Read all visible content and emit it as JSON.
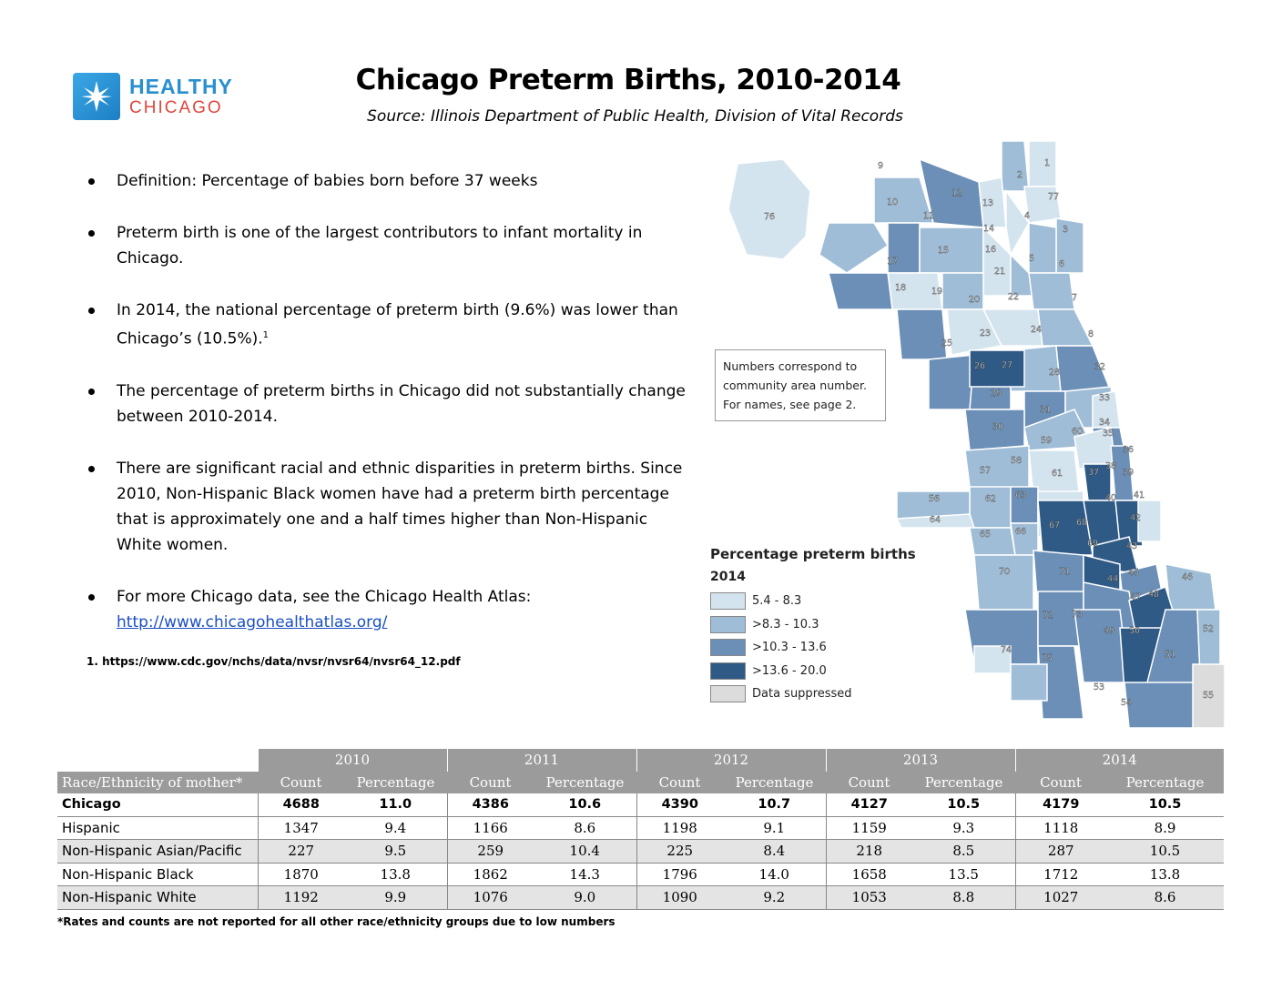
{
  "logo": {
    "line1": "HEALTHY",
    "line2": "CHICAGO"
  },
  "title": "Chicago Preterm Births, 2010-2014",
  "source": "Source:   Illinois Department of Public Health, Division of Vital Records",
  "bullets": [
    {
      "text": "Definition: Percentage of babies born before 37 weeks"
    },
    {
      "text": "Preterm birth is one of the largest contributors to infant mortality in Chicago."
    },
    {
      "text": "In 2014, the national percentage of preterm birth (9.6%) was lower than Chicago’s (10.5%).",
      "sup": "1"
    },
    {
      "text": "The percentage of preterm births in Chicago did not substantially change between 2010-2014."
    },
    {
      "text": "There are significant racial and ethnic disparities in preterm births. Since 2010, Non-Hispanic Black women have had a preterm birth percentage that is approximately one and a half times higher than Non-Hispanic White women."
    },
    {
      "text": "For more Chicago data, see the Chicago Health Atlas:",
      "link": "http://www.chicagohealthatlas.org/"
    }
  ],
  "footnote": "1. https://www.cdc.gov/nchs/data/nvsr/nvsr64/nvsr64_12.pdf",
  "callout": [
    "Numbers correspond to",
    "community area number.",
    "For names, see page 2."
  ],
  "legend": {
    "title": "Percentage preterm births",
    "year": "2014",
    "items": [
      {
        "label": "5.4 - 8.3",
        "color": "#d4e4ef"
      },
      {
        "label": ">8.3 - 10.3",
        "color": "#9fbdd6"
      },
      {
        "label": ">10.3 - 13.6",
        "color": "#6b8fb6"
      },
      {
        "label": ">13.6 - 20.0",
        "color": "#2f5a86"
      },
      {
        "label": "Data suppressed",
        "color": "#dcdcdc"
      }
    ]
  },
  "map_labels": [
    "1",
    "2",
    "3",
    "4",
    "5",
    "6",
    "7",
    "8",
    "9",
    "10",
    "11",
    "12",
    "13",
    "14",
    "15",
    "16",
    "17",
    "18",
    "19",
    "20",
    "21",
    "22",
    "23",
    "24",
    "25",
    "26",
    "27",
    "28",
    "29",
    "30",
    "31",
    "32",
    "33",
    "34",
    "35",
    "36",
    "37",
    "38",
    "39",
    "40",
    "41",
    "42",
    "43",
    "44",
    "45",
    "46",
    "47",
    "48",
    "49",
    "50",
    "51",
    "52",
    "53",
    "54",
    "55",
    "56",
    "57",
    "58",
    "59",
    "60",
    "61",
    "62",
    "63",
    "64",
    "65",
    "66",
    "67",
    "68",
    "69",
    "70",
    "71",
    "72",
    "73",
    "74",
    "75",
    "76",
    "77"
  ],
  "table": {
    "years": [
      "2010",
      "2011",
      "2012",
      "2013",
      "2014"
    ],
    "col_header": "Race/Ethnicity of mother*",
    "count_label": "Count",
    "pct_label": "Percentage",
    "rows": [
      {
        "name": "Chicago",
        "values": [
          "4688",
          "11.0",
          "4386",
          "10.6",
          "4390",
          "10.7",
          "4127",
          "10.5",
          "4179",
          "10.5"
        ]
      },
      {
        "name": "Hispanic",
        "values": [
          "1347",
          "9.4",
          "1166",
          "8.6",
          "1198",
          "9.1",
          "1159",
          "9.3",
          "1118",
          "8.9"
        ]
      },
      {
        "name": "Non-Hispanic Asian/Pacific",
        "values": [
          "227",
          "9.5",
          "259",
          "10.4",
          "225",
          "8.4",
          "218",
          "8.5",
          "287",
          "10.5"
        ]
      },
      {
        "name": "Non-Hispanic Black",
        "values": [
          "1870",
          "13.8",
          "1862",
          "14.3",
          "1796",
          "14.0",
          "1658",
          "13.5",
          "1712",
          "13.8"
        ]
      },
      {
        "name": "Non-Hispanic White",
        "values": [
          "1192",
          "9.9",
          "1076",
          "9.0",
          "1090",
          "9.2",
          "1053",
          "8.8",
          "1027",
          "8.6"
        ]
      }
    ],
    "note": "*Rates and counts are not reported for all other race/ethnicity groups due to low numbers"
  }
}
